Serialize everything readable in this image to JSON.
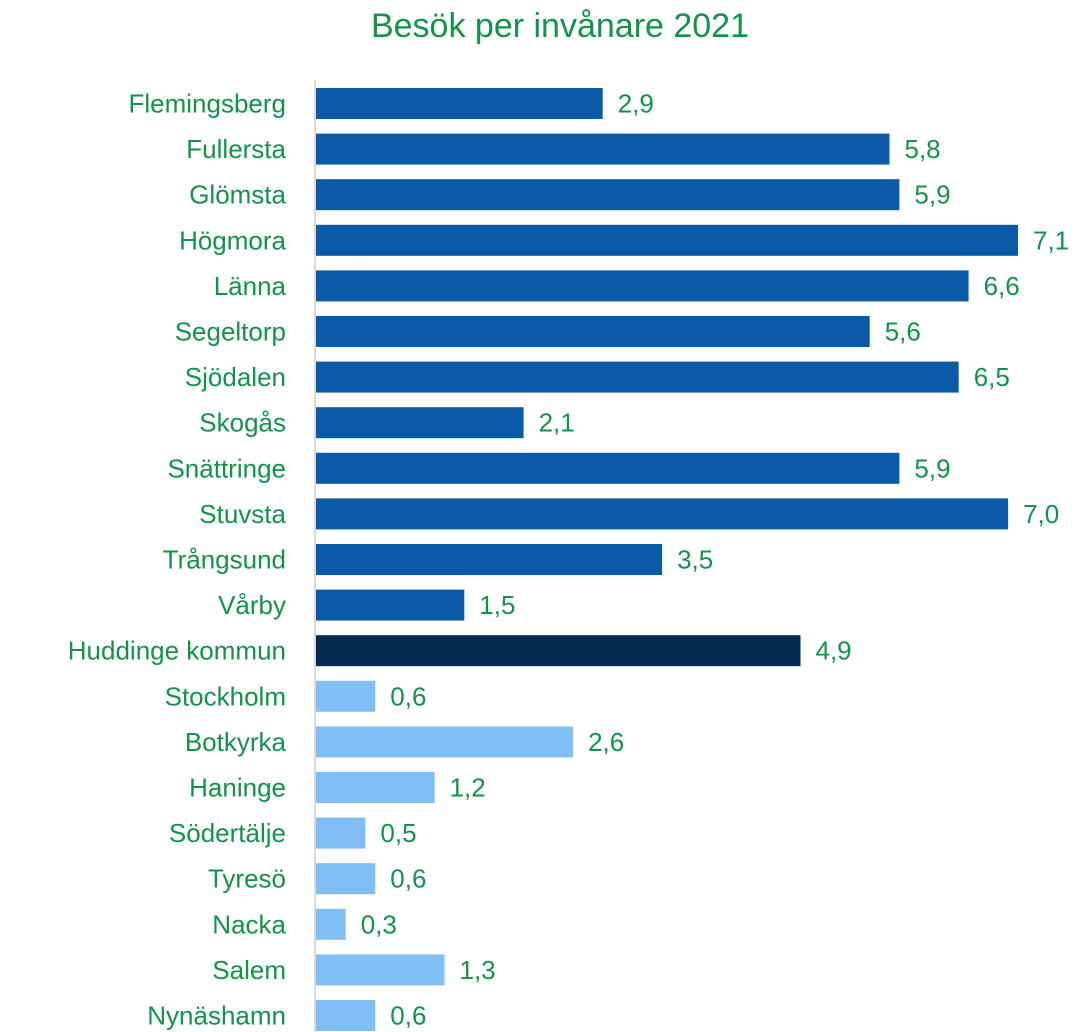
{
  "chart_data": {
    "type": "bar",
    "orientation": "horizontal",
    "title": "Besök per invånare 2021",
    "xlabel": "",
    "ylabel": "",
    "xlim": [
      0,
      7.1
    ],
    "grid": false,
    "legend": "none",
    "categories": [
      "Flemingsberg",
      "Fullersta",
      "Glömsta",
      "Högmora",
      "Länna",
      "Segeltorp",
      "Sjödalen",
      "Skogås",
      "Snättringe",
      "Stuvsta",
      "Trångsund",
      "Vårby",
      "Huddinge kommun",
      "Stockholm",
      "Botkyrka",
      "Haninge",
      "Södertälje",
      "Tyresö",
      "Nacka",
      "Salem",
      "Nynäshamn"
    ],
    "values": [
      2.9,
      5.8,
      5.9,
      7.1,
      6.6,
      5.6,
      6.5,
      2.1,
      5.9,
      7.0,
      3.5,
      1.5,
      4.9,
      0.6,
      2.6,
      1.2,
      0.5,
      0.6,
      0.3,
      1.3,
      0.6
    ],
    "value_labels": [
      "2,9",
      "5,8",
      "5,9",
      "7,1",
      "6,6",
      "5,6",
      "6,5",
      "2,1",
      "5,9",
      "7,0",
      "3,5",
      "1,5",
      "4,9",
      "0,6",
      "2,6",
      "1,2",
      "0,5",
      "0,6",
      "0,3",
      "1,3",
      "0,6"
    ],
    "bar_groups": [
      "district",
      "district",
      "district",
      "district",
      "district",
      "district",
      "district",
      "district",
      "district",
      "district",
      "district",
      "district",
      "municipality",
      "other",
      "other",
      "other",
      "other",
      "other",
      "other",
      "other",
      "other"
    ]
  },
  "colors": {
    "district": "#0B5AA8",
    "municipality": "#062B53",
    "other": "#7FBFF5",
    "text": "#12934A",
    "axis": "#D9D9D9"
  }
}
